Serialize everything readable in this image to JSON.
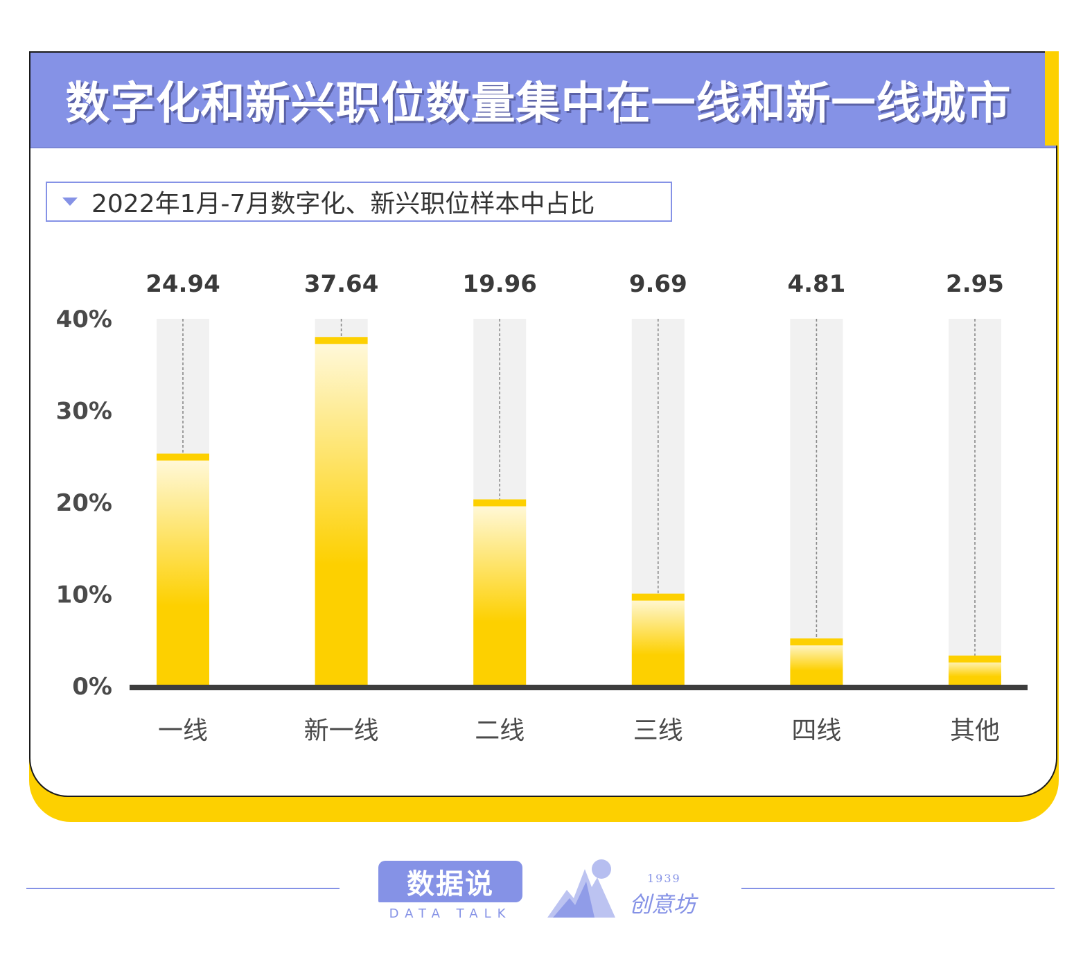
{
  "header": {
    "title": "数字化和新兴职位数量集中在一线和新一线城市"
  },
  "chart_data": {
    "type": "bar",
    "title": "2022年1月-7月数字化、新兴职位样本中占比",
    "categories": [
      "一线",
      "新一线",
      "二线",
      "三线",
      "四线",
      "其他"
    ],
    "values": [
      24.94,
      37.64,
      19.96,
      9.69,
      4.81,
      2.95
    ],
    "value_labels": [
      "24.94",
      "37.64",
      "19.96",
      "9.69",
      "4.81",
      "2.95"
    ],
    "ylim": [
      0,
      40
    ],
    "y_ticks": [
      "0%",
      "10%",
      "20%",
      "30%",
      "40%"
    ],
    "grid": false,
    "colors": {
      "bar": "#FDD000",
      "track": "#F1F1F1",
      "accent": "#8592E6"
    }
  },
  "footer": {
    "logo1_main": "数据说",
    "logo1_sub": "DATA TALK",
    "logo2_year": "1939",
    "logo2_name": "创意坊"
  }
}
